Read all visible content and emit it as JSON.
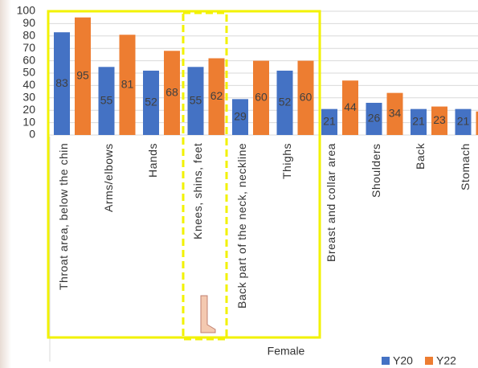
{
  "chart_data": {
    "type": "bar",
    "categories": [
      "Throat area, below the chin",
      "Arms/elbows",
      "Hands",
      "Knees, shins, feet",
      "Back part of the neck, neckline",
      "Thighs",
      "Breast and collar area",
      "Shoulders",
      "Back",
      "Stomach"
    ],
    "series": [
      {
        "name": "Y20",
        "color": "#4472c4",
        "values": [
          83,
          55,
          52,
          55,
          29,
          52,
          21,
          26,
          21,
          21
        ]
      },
      {
        "name": "Y22",
        "color": "#ed7d31",
        "values": [
          95,
          81,
          68,
          62,
          60,
          60,
          44,
          34,
          23,
          19
        ]
      }
    ],
    "xlabel": "Female",
    "ylim": [
      0,
      100
    ],
    "yticks": [
      0,
      10,
      20,
      30,
      40,
      50,
      60,
      70,
      80,
      90,
      100
    ],
    "grid": true
  }
}
